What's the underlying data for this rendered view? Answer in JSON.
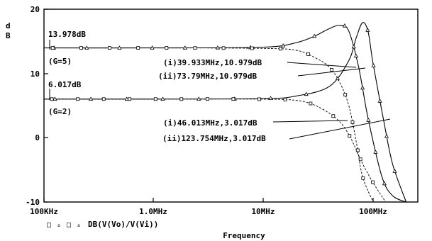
{
  "chart_data": {
    "type": "line",
    "xscale": "log",
    "xlim": [
      "100KHz",
      "200MHz"
    ],
    "ylim": [
      -10,
      20
    ],
    "x_ticks": [
      "100KHz",
      "1.0MHz",
      "10MHz",
      "100MHz"
    ],
    "y_ticks": [
      "20",
      "10",
      "0",
      "-10"
    ],
    "ylabel_lines": [
      "d",
      "B"
    ],
    "xlabel": "Frequency",
    "legend": {
      "markers": [
        "□",
        "▵",
        "□",
        "▵"
      ],
      "label": "DB(V(Vo)/V(Vi))"
    },
    "series": [
      {
        "gain": "G=5",
        "style": "solid",
        "marker": "triangle",
        "x": [
          "100KHz",
          "1MHz",
          "10MHz",
          "20MHz",
          "30MHz",
          "40MHz",
          "50MHz",
          "60MHz",
          "73.79MHz",
          "90MHz",
          "120MHz",
          "150MHz",
          "200MHz"
        ],
        "y": [
          13.978,
          13.978,
          14.1,
          14.8,
          15.9,
          17.0,
          17.5,
          16.6,
          10.979,
          3.0,
          -6.0,
          -9.0,
          -10.0
        ]
      },
      {
        "gain": "G=5",
        "style": "dashed",
        "marker": "square",
        "x": [
          "100KHz",
          "1MHz",
          "10MHz",
          "20MHz",
          "30MHz",
          "39.933MHz",
          "50MHz",
          "60MHz",
          "70MHz",
          "80MHz",
          "100MHz"
        ],
        "y": [
          13.978,
          13.978,
          13.9,
          13.6,
          12.4,
          10.979,
          8.5,
          5.0,
          -0.5,
          -6.0,
          -10.0
        ]
      },
      {
        "gain": "G=2",
        "style": "solid",
        "marker": "triangle",
        "x": [
          "100KHz",
          "1MHz",
          "10MHz",
          "20MHz",
          "40MHz",
          "60MHz",
          "70MHz",
          "80MHz",
          "90MHz",
          "100MHz",
          "123.754MHz",
          "150MHz",
          "200MHz"
        ],
        "y": [
          6.017,
          6.017,
          6.1,
          6.5,
          8.0,
          12.0,
          15.5,
          17.9,
          16.5,
          11.5,
          3.017,
          -4.0,
          -10.0
        ]
      },
      {
        "gain": "G=2",
        "style": "dashed",
        "marker": "square",
        "x": [
          "100KHz",
          "1MHz",
          "10MHz",
          "20MHz",
          "30MHz",
          "46.013MHz",
          "60MHz",
          "80MHz",
          "100MHz",
          "130MHz"
        ],
        "y": [
          6.017,
          6.017,
          6.0,
          5.8,
          5.0,
          3.017,
          0.5,
          -4.0,
          -7.0,
          -10.0
        ]
      }
    ],
    "annotations": {
      "g5_level": "13.978dB",
      "g5_label": "(G=5)",
      "g5_point1": "(i)39.933MHz,10.979dB",
      "g5_point2": "(ii)73.79MHz,10.979dB",
      "g2_level": "6.017dB",
      "g2_label": "(G=2)",
      "g2_point1": "(i)46.013MHz,3.017dB",
      "g2_point2": "(ii)123.754MHz,3.017dB"
    }
  }
}
